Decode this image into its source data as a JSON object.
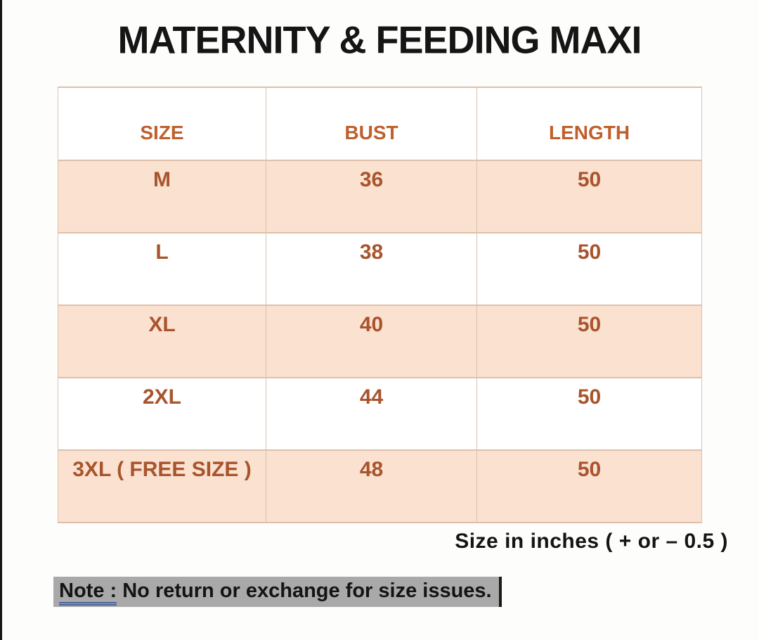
{
  "page": {
    "title": "MATERNITY & FEEDING MAXI"
  },
  "size_chart": {
    "columns": [
      "SIZE",
      "BUST",
      "LENGTH"
    ],
    "rows": [
      {
        "size": "M",
        "bust": "36",
        "length": "50"
      },
      {
        "size": "L",
        "bust": "38",
        "length": "50"
      },
      {
        "size": "XL",
        "bust": "40",
        "length": "50"
      },
      {
        "size": "2XL",
        "bust": "44",
        "length": "50"
      },
      {
        "size": "3XL ( FREE SIZE )",
        "bust": "48",
        "length": "50"
      }
    ],
    "unit_note": "Size in inches ( + or  – 0.5 )"
  },
  "note": {
    "label": "Note :",
    "text": " No return or exchange for size issues."
  },
  "colors": {
    "header_text": "#bf5f2c",
    "cell_text": "#a8542c",
    "row_highlight": "#fae1d0",
    "table_border": "#ddc0ab",
    "note_highlight": "#a9a9a9",
    "note_underline": "#46629e",
    "title_text": "#151515"
  }
}
